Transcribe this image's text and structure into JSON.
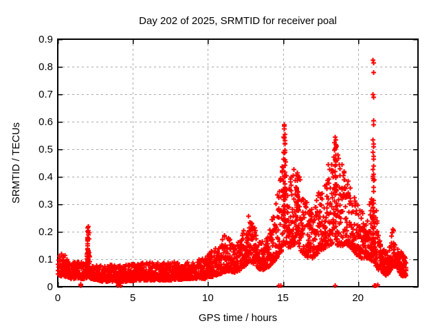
{
  "chart": {
    "title": "Day 202 of 2025, SRMTID for receiver poal",
    "xlabel": "GPS time / hours",
    "ylabel": "SRMTID / TECUs"
  },
  "chart_data": {
    "type": "scatter",
    "title": "Day 202 of 2025, SRMTID for receiver poal",
    "xlabel": "GPS time / hours",
    "ylabel": "SRMTID / TECUs",
    "xlim": [
      0,
      24
    ],
    "ylim": [
      0,
      0.9
    ],
    "xticks": {
      "values": [
        0,
        5,
        10,
        15,
        20
      ],
      "labels": [
        "0",
        "5",
        "10",
        "15",
        "20"
      ]
    },
    "yticks": {
      "values": [
        0,
        0.1,
        0.2,
        0.3,
        0.4,
        0.5,
        0.6,
        0.7,
        0.8,
        0.9
      ],
      "labels": [
        "0",
        "0.1",
        "0.2",
        "0.3",
        "0.4",
        "0.5",
        "0.6",
        "0.7",
        "0.8",
        "0.9"
      ]
    },
    "grid": true,
    "legend": "none",
    "marker": "plus",
    "point_color": "#ff0000",
    "grid_color": "#a8a8a8",
    "frame_color": "#000000",
    "background": "#ffffff",
    "text_color": "#000000",
    "sample_count": 2500,
    "t_end": 23.2,
    "seed": 1337,
    "band_bias_exponent": 1.5,
    "envelope_t_lo_hi": [
      [
        0.0,
        0.04,
        0.12
      ],
      [
        0.4,
        0.04,
        0.13
      ],
      [
        0.9,
        0.03,
        0.09
      ],
      [
        1.9,
        0.03,
        0.09
      ],
      [
        2.0,
        0.04,
        0.2
      ],
      [
        2.15,
        0.03,
        0.08
      ],
      [
        3.0,
        0.02,
        0.08
      ],
      [
        4.5,
        0.02,
        0.08
      ],
      [
        6.0,
        0.025,
        0.09
      ],
      [
        7.5,
        0.025,
        0.09
      ],
      [
        9.0,
        0.03,
        0.09
      ],
      [
        9.8,
        0.03,
        0.11
      ],
      [
        10.4,
        0.04,
        0.14
      ],
      [
        10.9,
        0.05,
        0.17
      ],
      [
        11.3,
        0.06,
        0.21
      ],
      [
        11.7,
        0.05,
        0.16
      ],
      [
        12.1,
        0.06,
        0.17
      ],
      [
        12.7,
        0.09,
        0.26
      ],
      [
        13.1,
        0.08,
        0.22
      ],
      [
        13.5,
        0.06,
        0.16
      ],
      [
        14.0,
        0.07,
        0.19
      ],
      [
        14.5,
        0.1,
        0.3
      ],
      [
        14.9,
        0.13,
        0.42
      ],
      [
        15.1,
        0.16,
        0.55
      ],
      [
        15.35,
        0.14,
        0.4
      ],
      [
        15.9,
        0.16,
        0.44
      ],
      [
        16.3,
        0.12,
        0.36
      ],
      [
        16.8,
        0.1,
        0.28
      ],
      [
        17.3,
        0.12,
        0.34
      ],
      [
        17.8,
        0.14,
        0.42
      ],
      [
        18.3,
        0.16,
        0.5
      ],
      [
        18.65,
        0.15,
        0.52
      ],
      [
        19.0,
        0.15,
        0.44
      ],
      [
        19.4,
        0.15,
        0.38
      ],
      [
        19.8,
        0.12,
        0.32
      ],
      [
        20.3,
        0.1,
        0.27
      ],
      [
        20.7,
        0.1,
        0.28
      ],
      [
        20.95,
        0.09,
        0.4
      ],
      [
        21.1,
        0.08,
        0.35
      ],
      [
        21.35,
        0.06,
        0.18
      ],
      [
        21.9,
        0.04,
        0.13
      ],
      [
        22.25,
        0.07,
        0.2
      ],
      [
        22.55,
        0.07,
        0.17
      ],
      [
        22.9,
        0.04,
        0.13
      ],
      [
        23.2,
        0.04,
        0.1
      ]
    ],
    "spike_columns": [
      [
        2.0,
        0.05,
        0.215,
        28
      ],
      [
        15.08,
        0.2,
        0.55,
        36
      ],
      [
        15.95,
        0.25,
        0.42,
        22
      ],
      [
        18.5,
        0.25,
        0.52,
        26
      ],
      [
        21.0,
        0.1,
        0.44,
        30
      ]
    ],
    "outlier_points": [
      [
        20.98,
        0.825
      ],
      [
        21.02,
        0.815
      ],
      [
        21.0,
        0.78
      ],
      [
        20.99,
        0.7
      ],
      [
        21.03,
        0.69
      ],
      [
        21.0,
        0.605
      ],
      [
        21.01,
        0.59
      ],
      [
        20.99,
        0.535
      ],
      [
        21.02,
        0.52
      ],
      [
        21.04,
        0.51
      ],
      [
        20.97,
        0.49
      ],
      [
        21.0,
        0.475
      ],
      [
        21.03,
        0.465
      ],
      [
        21.0,
        0.44
      ],
      [
        21.02,
        0.41
      ],
      [
        15.05,
        0.59
      ],
      [
        15.09,
        0.585
      ],
      [
        15.07,
        0.575
      ],
      [
        15.12,
        0.555
      ],
      [
        15.1,
        0.52
      ],
      [
        18.48,
        0.545
      ],
      [
        18.52,
        0.535
      ],
      [
        18.43,
        0.525
      ],
      [
        2.02,
        0.22
      ],
      [
        1.98,
        0.215
      ],
      [
        2.0,
        0.205
      ],
      [
        2.01,
        0.19
      ],
      [
        1.99,
        0.18
      ],
      [
        22.3,
        0.21
      ],
      [
        22.35,
        0.205
      ]
    ],
    "near_zero_points": [
      [
        1.5,
        0.004
      ],
      [
        1.53,
        0.009
      ],
      [
        3.98,
        0.004
      ],
      [
        4.05,
        0.01
      ],
      [
        4.15,
        0.006
      ],
      [
        14.72,
        0.004
      ],
      [
        14.85,
        0.006
      ],
      [
        18.45,
        0.004
      ],
      [
        21.05,
        0.005
      ],
      [
        21.18,
        0.004
      ],
      [
        21.3,
        0.007
      ]
    ]
  }
}
